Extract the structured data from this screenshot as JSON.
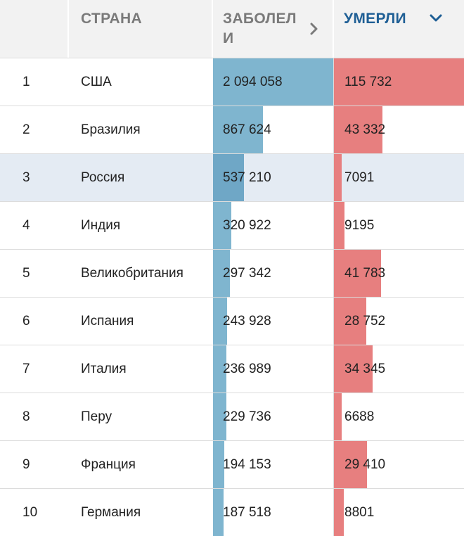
{
  "header": {
    "country_label": "СТРАНА",
    "cases_label_line1": "ЗАБОЛЕЛ",
    "cases_label_line2": "И",
    "deaths_label": "УМЕРЛИ",
    "cases_icon": "chevron-right-icon",
    "deaths_icon": "chevron-down-icon",
    "active_color": "#1f5f95",
    "inactive_color": "#7a7a7a"
  },
  "colors": {
    "cases_bar": "#7fb5cf",
    "deaths_bar": "#e77f7f",
    "highlight_row": "#e4ebf3"
  },
  "max_cases": 2094058,
  "max_deaths": 115732,
  "rows": [
    {
      "rank": "1",
      "country": "США",
      "cases": "2 094 058",
      "deaths": "115 732",
      "cases_n": 2094058,
      "deaths_n": 115732
    },
    {
      "rank": "2",
      "country": "Бразилия",
      "cases": "867 624",
      "deaths": "43 332",
      "cases_n": 867624,
      "deaths_n": 43332
    },
    {
      "rank": "3",
      "country": "Россия",
      "cases": "537 210",
      "deaths": "7091",
      "cases_n": 537210,
      "deaths_n": 7091,
      "highlight": true
    },
    {
      "rank": "4",
      "country": "Индия",
      "cases": "320 922",
      "deaths": "9195",
      "cases_n": 320922,
      "deaths_n": 9195
    },
    {
      "rank": "5",
      "country": "Великобритания",
      "cases": "297 342",
      "deaths": "41 783",
      "cases_n": 297342,
      "deaths_n": 41783
    },
    {
      "rank": "6",
      "country": "Испания",
      "cases": "243 928",
      "deaths": "28 752",
      "cases_n": 243928,
      "deaths_n": 28752
    },
    {
      "rank": "7",
      "country": "Италия",
      "cases": "236 989",
      "deaths": "34 345",
      "cases_n": 236989,
      "deaths_n": 34345
    },
    {
      "rank": "8",
      "country": "Перу",
      "cases": "229 736",
      "deaths": "6688",
      "cases_n": 229736,
      "deaths_n": 6688
    },
    {
      "rank": "9",
      "country": "Франция",
      "cases": "194 153",
      "deaths": "29 410",
      "cases_n": 194153,
      "deaths_n": 29410
    },
    {
      "rank": "10",
      "country": "Германия",
      "cases": "187 518",
      "deaths": "8801",
      "cases_n": 187518,
      "deaths_n": 8801
    }
  ]
}
